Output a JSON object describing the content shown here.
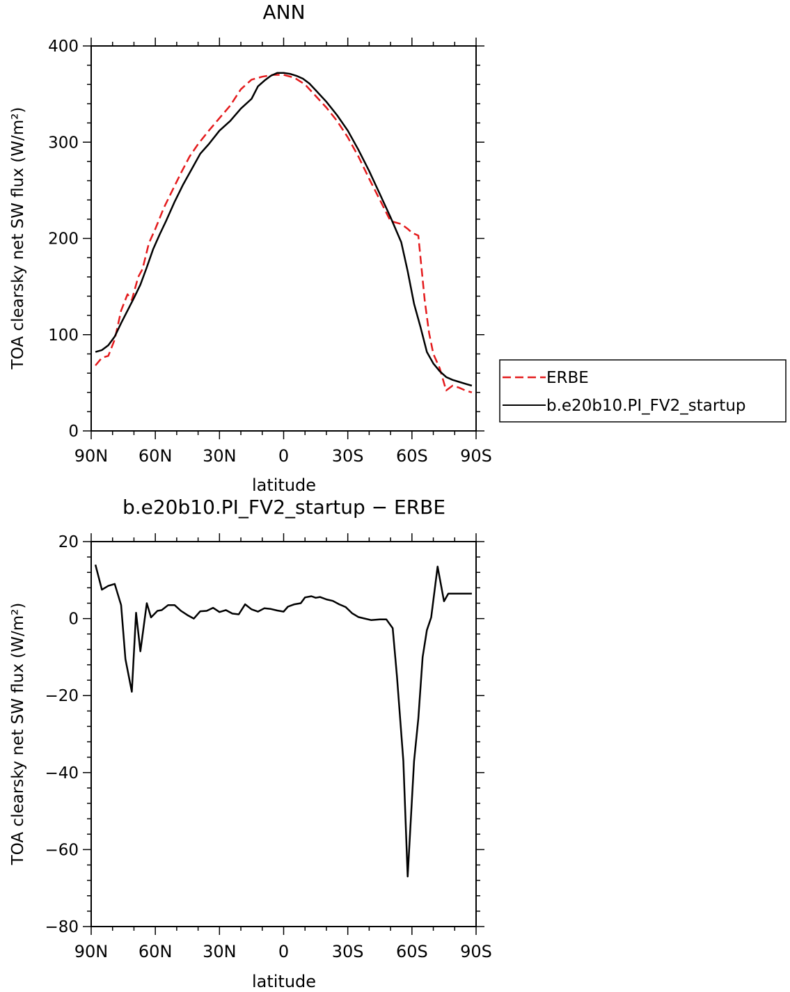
{
  "chart_data": [
    {
      "type": "line",
      "title": "ANN",
      "xlabel": "latitude",
      "ylabel": "TOA clearsky net SW flux (W/m²)",
      "xticks": [
        "90N",
        "60N",
        "30N",
        "0",
        "30S",
        "60S",
        "90S"
      ],
      "yticks": [
        "0",
        "100",
        "200",
        "300",
        "400"
      ],
      "xlim": [
        90,
        -90
      ],
      "ylim": [
        0,
        400
      ],
      "legend_position": "right",
      "series": [
        {
          "name": "ERBE",
          "color": "#e41a1c",
          "dash": true,
          "x": [
            88,
            85,
            82,
            79,
            76,
            73,
            71,
            68,
            66,
            63,
            60,
            56,
            52,
            48,
            44,
            40,
            35,
            30,
            25,
            20,
            15,
            10,
            5,
            0,
            -5,
            -10,
            -15,
            -20,
            -25,
            -30,
            -35,
            -40,
            -45,
            -50,
            -55,
            -58,
            -60,
            -63,
            -66,
            -68,
            -70,
            -73,
            -76,
            -79,
            -82,
            -85,
            -88
          ],
          "values": [
            68,
            76,
            78,
            95,
            125,
            142,
            136,
            160,
            168,
            195,
            210,
            232,
            250,
            268,
            285,
            298,
            312,
            325,
            338,
            355,
            365,
            368,
            370,
            370,
            367,
            360,
            348,
            336,
            322,
            305,
            285,
            262,
            240,
            218,
            215,
            210,
            206,
            203,
            135,
            102,
            80,
            65,
            42,
            47,
            45,
            42,
            40
          ]
        },
        {
          "name": "b.e20b10.PI_FV2_startup",
          "color": "#000000",
          "dash": false,
          "x": [
            88,
            85,
            82,
            79,
            76,
            73,
            70,
            67,
            64,
            61,
            58,
            55,
            51,
            47,
            43,
            39,
            35,
            30,
            25,
            20,
            15,
            12,
            9,
            6,
            3,
            0,
            -3,
            -6,
            -9,
            -12,
            -15,
            -20,
            -25,
            -30,
            -35,
            -40,
            -45,
            -50,
            -55,
            -58,
            -61,
            -64,
            -67,
            -70,
            -73,
            -76,
            -79,
            -82,
            -85,
            -88
          ],
          "values": [
            82,
            84,
            89,
            98,
            112,
            125,
            138,
            152,
            170,
            189,
            204,
            218,
            238,
            256,
            272,
            288,
            298,
            312,
            322,
            335,
            345,
            358,
            364,
            369,
            372,
            372,
            371,
            369,
            366,
            361,
            354,
            342,
            328,
            312,
            292,
            270,
            246,
            222,
            196,
            166,
            132,
            108,
            82,
            70,
            62,
            56,
            53,
            51,
            49,
            47
          ]
        }
      ]
    },
    {
      "type": "line",
      "title": "b.e20b10.PI_FV2_startup − ERBE",
      "xlabel": "latitude",
      "ylabel": "TOA clearsky net SW flux (W/m²)",
      "xticks": [
        "90N",
        "60N",
        "30N",
        "0",
        "30S",
        "60S",
        "90S"
      ],
      "yticks": [
        "20",
        "0",
        "−20",
        "−40",
        "−60",
        "−80"
      ],
      "xlim": [
        90,
        -90
      ],
      "ylim": [
        -80,
        20
      ],
      "series": [
        {
          "name": "b.e20b10.PI_FV2_startup",
          "color": "#000000",
          "dash": false,
          "x": [
            88,
            85,
            82,
            79,
            76,
            74,
            71,
            69,
            67,
            64,
            62,
            59,
            57,
            54,
            51,
            48,
            45,
            42,
            39,
            36,
            33,
            30,
            27,
            24,
            21,
            18,
            15,
            12,
            9,
            6,
            3,
            0,
            -2,
            -5,
            -8,
            -10,
            -13,
            -15,
            -17,
            -20,
            -23,
            -26,
            -29,
            -32,
            -35,
            -38,
            -41,
            -45,
            -48,
            -51,
            -53,
            -56,
            -58,
            -61,
            -63,
            -65,
            -67,
            -69,
            -72,
            -75,
            -77,
            -80,
            -82,
            -84,
            -86,
            -88
          ],
          "values": [
            14,
            7.5,
            8.5,
            9,
            3.5,
            -10.5,
            -19,
            1.5,
            -8.5,
            4,
            0.3,
            2,
            2.2,
            3.5,
            3.5,
            2,
            0.9,
            0,
            1.9,
            2,
            2.8,
            1.7,
            2.2,
            1.3,
            1.1,
            3.7,
            2.4,
            1.8,
            2.7,
            2.5,
            2.1,
            1.8,
            3.1,
            3.7,
            4,
            5.5,
            5.8,
            5.4,
            5.6,
            5,
            4.6,
            3.7,
            3,
            1.4,
            0.4,
            0,
            -0.4,
            -0.2,
            -0.2,
            -2.5,
            -15,
            -37,
            -67,
            -37,
            -26,
            -10,
            -3,
            0.3,
            13.5,
            4.5,
            6.5,
            6.5,
            6.5,
            6.5,
            6.5,
            6.5
          ]
        }
      ]
    }
  ]
}
